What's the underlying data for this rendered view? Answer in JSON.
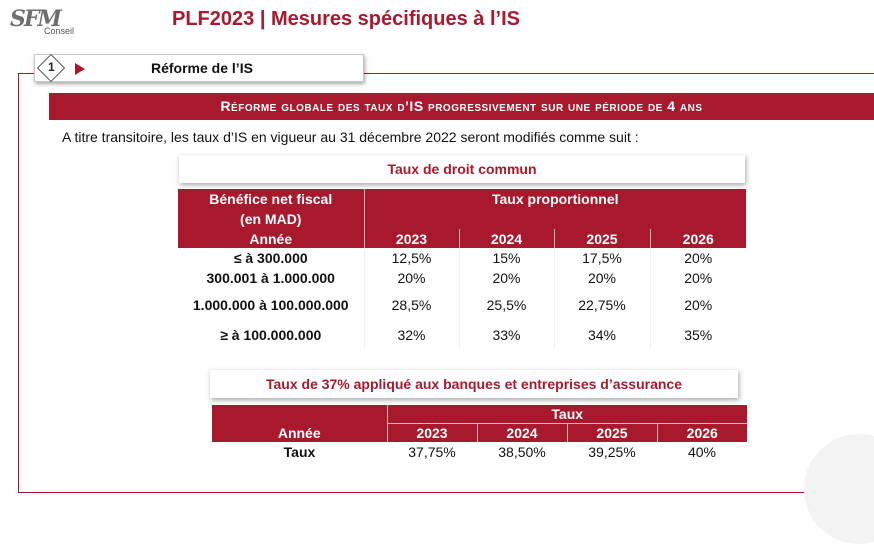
{
  "logo": {
    "mark": "SFM",
    "subtitle": "Conseil"
  },
  "header": {
    "title": "PLF2023 | Mesures spécifiques à l’IS"
  },
  "section": {
    "number": "1",
    "label": "Réforme de l’IS"
  },
  "banner": "Réforme globale des taux d’IS progressivement sur une période de 4 ans",
  "intro": "A titre transitoire, les taux d’IS en vigueur au 31 décembre 2022 seront modifiés comme suit :",
  "table1": {
    "caption": "Taux de droit commun",
    "row_header_line1": "Bénéfice net fiscal",
    "row_header_line2": "(en MAD)",
    "row_header_line3": "Année",
    "group_header": "Taux proportionnel",
    "years": [
      "2023",
      "2024",
      "2025",
      "2026"
    ],
    "rows": [
      {
        "label": "≤ à 300.000",
        "values": [
          "12,5%",
          "15%",
          "17,5%",
          "20%"
        ]
      },
      {
        "label": "300.001 à 1.000.000",
        "values": [
          "20%",
          "20%",
          "20%",
          "20%"
        ]
      },
      {
        "label": "1.000.000 à 100.000.000",
        "values": [
          "28,5%",
          "25,5%",
          "22,75%",
          "20%"
        ]
      },
      {
        "label": "≥ à 100.000.000",
        "values": [
          "32%",
          "33%",
          "34%",
          "35%"
        ]
      }
    ]
  },
  "table2": {
    "caption": "Taux de 37% appliqué aux banques et entreprises d’assurance",
    "group_header": "Taux",
    "row_header": "Année",
    "years": [
      "2023",
      "2024",
      "2025",
      "2026"
    ],
    "rows": [
      {
        "label": "Taux",
        "values": [
          "37,75%",
          "38,50%",
          "39,25%",
          "40%"
        ]
      }
    ]
  },
  "colors": {
    "accent": "#a8192e"
  }
}
